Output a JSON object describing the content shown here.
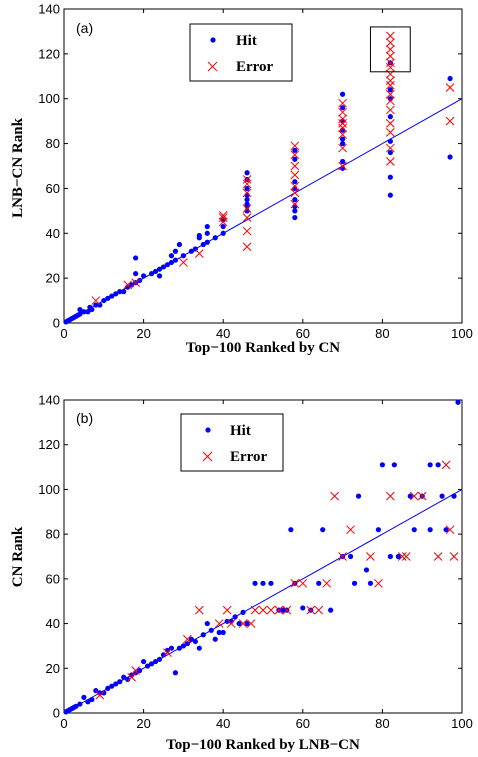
{
  "colors": {
    "hit": "#0000ff",
    "error": "#ff0000",
    "fit": "#0000ff",
    "axis": "#000000"
  },
  "chart_data": [
    {
      "type": "scatter",
      "panel_label": "(a)",
      "xlabel": "Top−100 Ranked by CN",
      "ylabel": "LNB−CN Rank",
      "xlim": [
        0,
        100
      ],
      "ylim": [
        0,
        140
      ],
      "xticks": [
        0,
        20,
        40,
        60,
        80,
        100
      ],
      "yticks": [
        0,
        20,
        40,
        60,
        80,
        100,
        120,
        140
      ],
      "legend": {
        "placement": "top-center",
        "entries": [
          "Hit",
          "Error"
        ]
      },
      "fit_line": [
        [
          0,
          0
        ],
        [
          100,
          100
        ]
      ],
      "annotation": {
        "type": "box",
        "x_range": [
          77,
          87
        ],
        "y_range": [
          112,
          132
        ]
      },
      "series": [
        {
          "name": "Hit",
          "marker": "dot",
          "points": [
            [
              0.5,
              0.5
            ],
            [
              1,
              1
            ],
            [
              1.5,
              1.5
            ],
            [
              2,
              2
            ],
            [
              2.5,
              2.5
            ],
            [
              3,
              3
            ],
            [
              3.5,
              3.5
            ],
            [
              4,
              4
            ],
            [
              4,
              6
            ],
            [
              5,
              5
            ],
            [
              6,
              5
            ],
            [
              6.5,
              7
            ],
            [
              7,
              6
            ],
            [
              8,
              8
            ],
            [
              9,
              8
            ],
            [
              10,
              10
            ],
            [
              11,
              11
            ],
            [
              12,
              12
            ],
            [
              13,
              13
            ],
            [
              14,
              14
            ],
            [
              15,
              14
            ],
            [
              16,
              16
            ],
            [
              17,
              17
            ],
            [
              18,
              18
            ],
            [
              18,
              22
            ],
            [
              18,
              29
            ],
            [
              19,
              19
            ],
            [
              20,
              21
            ],
            [
              22,
              22
            ],
            [
              23,
              23
            ],
            [
              24,
              24
            ],
            [
              24,
              21
            ],
            [
              25,
              25
            ],
            [
              26,
              26
            ],
            [
              27,
              27
            ],
            [
              27,
              30
            ],
            [
              28,
              28
            ],
            [
              28,
              32
            ],
            [
              29,
              35
            ],
            [
              30,
              30
            ],
            [
              32,
              32
            ],
            [
              33,
              33
            ],
            [
              34,
              38
            ],
            [
              34,
              39
            ],
            [
              35,
              35
            ],
            [
              36,
              36
            ],
            [
              36,
              40
            ],
            [
              36,
              43
            ],
            [
              38,
              38
            ],
            [
              40,
              40
            ],
            [
              40,
              43
            ],
            [
              40,
              46
            ],
            [
              46,
              50
            ],
            [
              46,
              52
            ],
            [
              46,
              53
            ],
            [
              46,
              55
            ],
            [
              46,
              57
            ],
            [
              46,
              60
            ],
            [
              46,
              64
            ],
            [
              46,
              67
            ],
            [
              58,
              47
            ],
            [
              58,
              50
            ],
            [
              58,
              52
            ],
            [
              58,
              55
            ],
            [
              58,
              60
            ],
            [
              58,
              63
            ],
            [
              58,
              73
            ],
            [
              58,
              77
            ],
            [
              70,
              69
            ],
            [
              70,
              72
            ],
            [
              70,
              80
            ],
            [
              70,
              82
            ],
            [
              70,
              86
            ],
            [
              70,
              90
            ],
            [
              70,
              96
            ],
            [
              70,
              102
            ],
            [
              82,
              57
            ],
            [
              82,
              65
            ],
            [
              82,
              76
            ],
            [
              82,
              81
            ],
            [
              82,
              92
            ],
            [
              82,
              100
            ],
            [
              82,
              104
            ],
            [
              82,
              116
            ],
            [
              97,
              74
            ],
            [
              97,
              109
            ]
          ]
        },
        {
          "name": "Error",
          "marker": "x",
          "points": [
            [
              8,
              10
            ],
            [
              16,
              17
            ],
            [
              18,
              18
            ],
            [
              30,
              27
            ],
            [
              34,
              31
            ],
            [
              40,
              45
            ],
            [
              40,
              47
            ],
            [
              40,
              48
            ],
            [
              46,
              34
            ],
            [
              46,
              41
            ],
            [
              46,
              47
            ],
            [
              46,
              51
            ],
            [
              46,
              58
            ],
            [
              46,
              62
            ],
            [
              46,
              64
            ],
            [
              58,
              53
            ],
            [
              58,
              58
            ],
            [
              58,
              61
            ],
            [
              58,
              66
            ],
            [
              58,
              70
            ],
            [
              58,
              75
            ],
            [
              58,
              79
            ],
            [
              70,
              70
            ],
            [
              70,
              78
            ],
            [
              70,
              84
            ],
            [
              70,
              87
            ],
            [
              70,
              89
            ],
            [
              70,
              91
            ],
            [
              70,
              94
            ],
            [
              70,
              98
            ],
            [
              82,
              72
            ],
            [
              82,
              78
            ],
            [
              82,
              85
            ],
            [
              82,
              89
            ],
            [
              82,
              95
            ],
            [
              82,
              99
            ],
            [
              82,
              102
            ],
            [
              82,
              106
            ],
            [
              82,
              108
            ],
            [
              82,
              111
            ],
            [
              82,
              114
            ],
            [
              82,
              116
            ],
            [
              82,
              119
            ],
            [
              82,
              122
            ],
            [
              82,
              125
            ],
            [
              82,
              128
            ],
            [
              97,
              90
            ],
            [
              97,
              105
            ]
          ]
        }
      ]
    },
    {
      "type": "scatter",
      "panel_label": "(b)",
      "xlabel": "Top−100 Ranked by LNB−CN",
      "ylabel": "CN Rank",
      "xlim": [
        0,
        100
      ],
      "ylim": [
        0,
        140
      ],
      "xticks": [
        0,
        20,
        40,
        60,
        80,
        100
      ],
      "yticks": [
        0,
        20,
        40,
        60,
        80,
        100,
        120,
        140
      ],
      "legend": {
        "placement": "top-left",
        "entries": [
          "Hit",
          "Error"
        ]
      },
      "fit_line": [
        [
          0,
          0
        ],
        [
          100,
          100
        ]
      ],
      "series": [
        {
          "name": "Hit",
          "marker": "dot",
          "points": [
            [
              0.5,
              0.5
            ],
            [
              1,
              1
            ],
            [
              1.5,
              1.5
            ],
            [
              2,
              2
            ],
            [
              2.5,
              2.5
            ],
            [
              3,
              3
            ],
            [
              4,
              4
            ],
            [
              5,
              7
            ],
            [
              6,
              5
            ],
            [
              7,
              6
            ],
            [
              8,
              10
            ],
            [
              9,
              9
            ],
            [
              10,
              9
            ],
            [
              11,
              11
            ],
            [
              12,
              12
            ],
            [
              13,
              13
            ],
            [
              14,
              14
            ],
            [
              15,
              16
            ],
            [
              16,
              15
            ],
            [
              17,
              17
            ],
            [
              18,
              18
            ],
            [
              19,
              19
            ],
            [
              20,
              23
            ],
            [
              21,
              21
            ],
            [
              22,
              22
            ],
            [
              23,
              23
            ],
            [
              24,
              24
            ],
            [
              25,
              26
            ],
            [
              26,
              28
            ],
            [
              27,
              29
            ],
            [
              28,
              18
            ],
            [
              29,
              29
            ],
            [
              30,
              30
            ],
            [
              31,
              31
            ],
            [
              32,
              33
            ],
            [
              33,
              32
            ],
            [
              34,
              29
            ],
            [
              35,
              35
            ],
            [
              36,
              40
            ],
            [
              37,
              37
            ],
            [
              38,
              33
            ],
            [
              39,
              36
            ],
            [
              40,
              36
            ],
            [
              41,
              41
            ],
            [
              42,
              41
            ],
            [
              43,
              43
            ],
            [
              44,
              40
            ],
            [
              45,
              45
            ],
            [
              46,
              40
            ],
            [
              48,
              58
            ],
            [
              50,
              58
            ],
            [
              52,
              58
            ],
            [
              54,
              46
            ],
            [
              55,
              46
            ],
            [
              56,
              46
            ],
            [
              57,
              82
            ],
            [
              58,
              58
            ],
            [
              60,
              47
            ],
            [
              62,
              46
            ],
            [
              64,
              58
            ],
            [
              65,
              82
            ],
            [
              67,
              46
            ],
            [
              70,
              70
            ],
            [
              72,
              70
            ],
            [
              73,
              58
            ],
            [
              74,
              97
            ],
            [
              76,
              64
            ],
            [
              77,
              58
            ],
            [
              79,
              82
            ],
            [
              80,
              111
            ],
            [
              82,
              70
            ],
            [
              83,
              111
            ],
            [
              84,
              70
            ],
            [
              87,
              97
            ],
            [
              88,
              82
            ],
            [
              90,
              97
            ],
            [
              92,
              111
            ],
            [
              92,
              82
            ],
            [
              94,
              111
            ],
            [
              95,
              97
            ],
            [
              96,
              82
            ],
            [
              98,
              97
            ],
            [
              99,
              139
            ]
          ]
        },
        {
          "name": "Error",
          "marker": "x",
          "points": [
            [
              9,
              8
            ],
            [
              17,
              16
            ],
            [
              18,
              19
            ],
            [
              26,
              27
            ],
            [
              31,
              33
            ],
            [
              34,
              46
            ],
            [
              39,
              40
            ],
            [
              41,
              46
            ],
            [
              42,
              40
            ],
            [
              45,
              40
            ],
            [
              47,
              40
            ],
            [
              48,
              46
            ],
            [
              50,
              46
            ],
            [
              52,
              46
            ],
            [
              54,
              46
            ],
            [
              56,
              46
            ],
            [
              58,
              58
            ],
            [
              60,
              58
            ],
            [
              62,
              46
            ],
            [
              64,
              46
            ],
            [
              66,
              58
            ],
            [
              68,
              97
            ],
            [
              70,
              70
            ],
            [
              72,
              82
            ],
            [
              77,
              70
            ],
            [
              79,
              58
            ],
            [
              82,
              97
            ],
            [
              85,
              70
            ],
            [
              86,
              70
            ],
            [
              88,
              97
            ],
            [
              90,
              97
            ],
            [
              94,
              70
            ],
            [
              96,
              111
            ],
            [
              97,
              82
            ],
            [
              98,
              70
            ]
          ]
        }
      ]
    }
  ]
}
